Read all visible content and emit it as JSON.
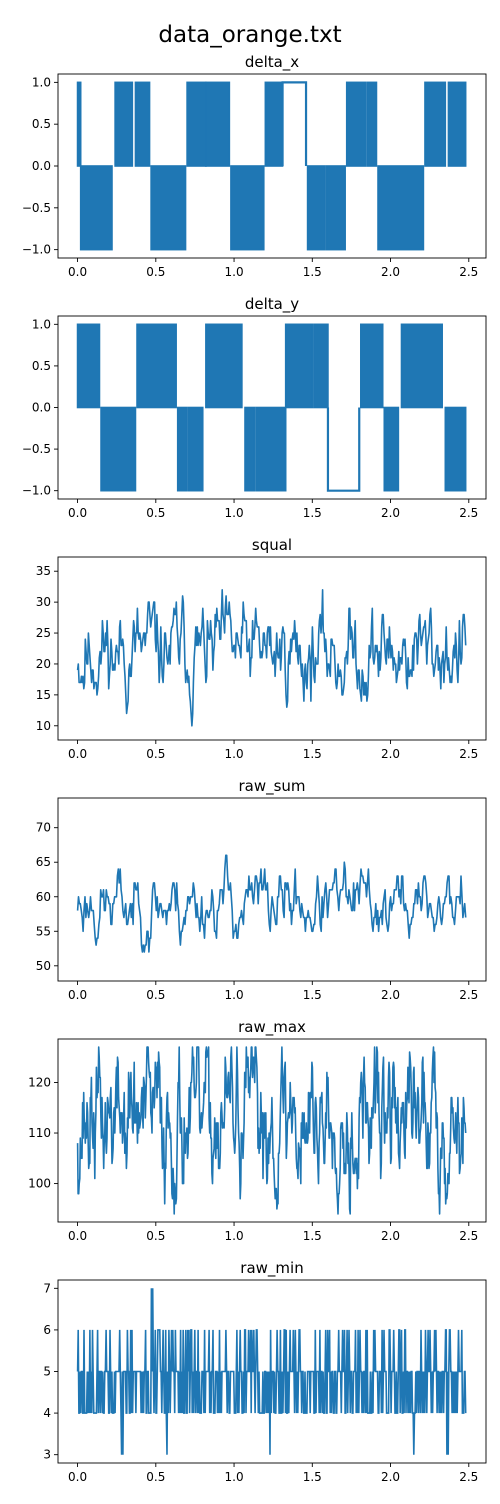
{
  "figure": {
    "suptitle": "data_orange.txt",
    "line_color": "#1f77b4"
  },
  "chart_data": [
    {
      "type": "line",
      "title": "delta_x",
      "pattern": "square",
      "xlim": [
        -0.125,
        2.61
      ],
      "ylim": [
        -1.1,
        1.1
      ],
      "xticks": [
        0.0,
        0.5,
        1.0,
        1.5,
        2.0,
        2.5
      ],
      "xticklabels": [
        "0.0",
        "0.5",
        "1.0",
        "1.5",
        "2.0",
        "2.5"
      ],
      "yticks": [
        -1.0,
        -0.5,
        0.0,
        0.5,
        1.0
      ],
      "yticklabels": [
        "−1.0",
        "−0.5",
        "0.0",
        "0.5",
        "1.0"
      ],
      "segments": [
        {
          "x": [
            0.0,
            0.02
          ],
          "lo": 0,
          "hi": 1
        },
        {
          "x": [
            0.02,
            0.22
          ],
          "lo": -1,
          "hi": 0
        },
        {
          "x": [
            0.24,
            0.35
          ],
          "lo": 0,
          "hi": 1
        },
        {
          "x": [
            0.37,
            0.46
          ],
          "lo": 0,
          "hi": 1
        },
        {
          "x": [
            0.47,
            0.69
          ],
          "lo": -1,
          "hi": 0
        },
        {
          "x": [
            0.7,
            0.82
          ],
          "lo": 0,
          "hi": 1
        },
        {
          "x": [
            0.82,
            0.97
          ],
          "lo": 0,
          "hi": 1
        },
        {
          "x": [
            0.98,
            1.19
          ],
          "lo": -1,
          "hi": 0
        },
        {
          "x": [
            1.2,
            1.31
          ],
          "lo": 0,
          "hi": 1
        },
        {
          "x": [
            1.31,
            1.46
          ],
          "lo": 0,
          "hi": 1,
          "flat": 1
        },
        {
          "x": [
            1.47,
            1.58
          ],
          "lo": -1,
          "hi": 0
        },
        {
          "x": [
            1.59,
            1.71
          ],
          "lo": -1,
          "hi": 0
        },
        {
          "x": [
            1.72,
            1.84
          ],
          "lo": 0,
          "hi": 1
        },
        {
          "x": [
            1.85,
            1.91
          ],
          "lo": 0,
          "hi": 1
        },
        {
          "x": [
            1.92,
            2.21
          ],
          "lo": -1,
          "hi": 0
        },
        {
          "x": [
            2.22,
            2.35
          ],
          "lo": 0,
          "hi": 1
        },
        {
          "x": [
            2.37,
            2.48
          ],
          "lo": 0,
          "hi": 1
        }
      ]
    },
    {
      "type": "line",
      "title": "delta_y",
      "pattern": "square",
      "xlim": [
        -0.125,
        2.61
      ],
      "ylim": [
        -1.1,
        1.1
      ],
      "xticks": [
        0.0,
        0.5,
        1.0,
        1.5,
        2.0,
        2.5
      ],
      "xticklabels": [
        "0.0",
        "0.5",
        "1.0",
        "1.5",
        "2.0",
        "2.5"
      ],
      "yticks": [
        -1.0,
        -0.5,
        0.0,
        0.5,
        1.0
      ],
      "yticklabels": [
        "−1.0",
        "−0.5",
        "0.0",
        "0.5",
        "1.0"
      ],
      "segments": [
        {
          "x": [
            0.0,
            0.14
          ],
          "lo": 0,
          "hi": 1
        },
        {
          "x": [
            0.15,
            0.37
          ],
          "lo": -1,
          "hi": 0
        },
        {
          "x": [
            0.38,
            0.63
          ],
          "lo": 0,
          "hi": 1
        },
        {
          "x": [
            0.64,
            0.7
          ],
          "lo": -1,
          "hi": 0
        },
        {
          "x": [
            0.71,
            0.8
          ],
          "lo": -1,
          "hi": 0
        },
        {
          "x": [
            0.82,
            1.05
          ],
          "lo": 0,
          "hi": 1
        },
        {
          "x": [
            1.07,
            1.13
          ],
          "lo": -1,
          "hi": 0
        },
        {
          "x": [
            1.14,
            1.33
          ],
          "lo": -1,
          "hi": 0
        },
        {
          "x": [
            1.33,
            1.5
          ],
          "lo": 0,
          "hi": 1
        },
        {
          "x": [
            1.51,
            1.6
          ],
          "lo": 0,
          "hi": 1
        },
        {
          "x": [
            1.6,
            1.8
          ],
          "lo": -1,
          "hi": 0,
          "flat": -1
        },
        {
          "x": [
            1.81,
            1.95
          ],
          "lo": 0,
          "hi": 1
        },
        {
          "x": [
            1.96,
            2.05
          ],
          "lo": -1,
          "hi": 0
        },
        {
          "x": [
            2.07,
            2.33
          ],
          "lo": 0,
          "hi": 1
        },
        {
          "x": [
            2.35,
            2.48
          ],
          "lo": -1,
          "hi": 0
        }
      ]
    },
    {
      "type": "line",
      "title": "squal",
      "pattern": "noise",
      "xlim": [
        -0.125,
        2.61
      ],
      "ylim": [
        7.7,
        37.3
      ],
      "xticks": [
        0.0,
        0.5,
        1.0,
        1.5,
        2.0,
        2.5
      ],
      "xticklabels": [
        "0.0",
        "0.5",
        "1.0",
        "1.5",
        "2.0",
        "2.5"
      ],
      "yticks": [
        10,
        15,
        20,
        25,
        30,
        35
      ],
      "yticklabels": [
        "10",
        "15",
        "20",
        "25",
        "30",
        "35"
      ],
      "series": {
        "x0": 0.0,
        "x1": 2.48,
        "n": 500,
        "mean": 22,
        "sd": 4.8,
        "lo": 9,
        "hi": 36,
        "step": 1,
        "seed": 11
      }
    },
    {
      "type": "line",
      "title": "raw_sum",
      "pattern": "noise",
      "xlim": [
        -0.125,
        2.61
      ],
      "ylim": [
        47.8,
        74.3
      ],
      "xticks": [
        0.0,
        0.5,
        1.0,
        1.5,
        2.0,
        2.5
      ],
      "xticklabels": [
        "0.0",
        "0.5",
        "1.0",
        "1.5",
        "2.0",
        "2.5"
      ],
      "yticks": [
        50,
        55,
        60,
        65,
        70
      ],
      "yticklabels": [
        "50",
        "55",
        "60",
        "65",
        "70"
      ],
      "series": {
        "x0": 0.0,
        "x1": 2.48,
        "n": 420,
        "mean": 59,
        "sd": 3.2,
        "lo": 49,
        "hi": 73,
        "step": 1,
        "seed": 23
      }
    },
    {
      "type": "line",
      "title": "raw_max",
      "pattern": "noise",
      "xlim": [
        -0.125,
        2.61
      ],
      "ylim": [
        92.4,
        128.6
      ],
      "xticks": [
        0.0,
        0.5,
        1.0,
        1.5,
        2.0,
        2.5
      ],
      "xticklabels": [
        "0.0",
        "0.5",
        "1.0",
        "1.5",
        "2.0",
        "2.5"
      ],
      "yticks": [
        100,
        110,
        120
      ],
      "yticklabels": [
        "100",
        "110",
        "120"
      ],
      "series": {
        "x0": 0.0,
        "x1": 2.48,
        "n": 700,
        "mean": 113,
        "sd": 9,
        "lo": 94,
        "hi": 127,
        "step": 1,
        "seed": 37
      }
    },
    {
      "type": "line",
      "title": "raw_min",
      "pattern": "levels",
      "xlim": [
        -0.125,
        2.61
      ],
      "ylim": [
        2.8,
        7.2
      ],
      "xticks": [
        0.0,
        0.5,
        1.0,
        1.5,
        2.0,
        2.5
      ],
      "xticklabels": [
        "0.0",
        "0.5",
        "1.0",
        "1.5",
        "2.0",
        "2.5"
      ],
      "yticks": [
        3,
        4,
        5,
        6,
        7
      ],
      "yticklabels": [
        "3",
        "4",
        "5",
        "6",
        "7"
      ],
      "series": {
        "x0": 0.0,
        "x1": 2.48,
        "n": 600,
        "lo": 3,
        "hi": 7,
        "seed": 51
      },
      "spikes": [
        {
          "x": 0.28,
          "y": 3
        },
        {
          "x": 0.29,
          "y": 3
        },
        {
          "x": 0.47,
          "y": 7
        },
        {
          "x": 0.48,
          "y": 7
        },
        {
          "x": 0.57,
          "y": 3
        },
        {
          "x": 1.23,
          "y": 3
        },
        {
          "x": 2.15,
          "y": 3
        },
        {
          "x": 2.36,
          "y": 3
        },
        {
          "x": 2.37,
          "y": 3
        }
      ]
    }
  ]
}
